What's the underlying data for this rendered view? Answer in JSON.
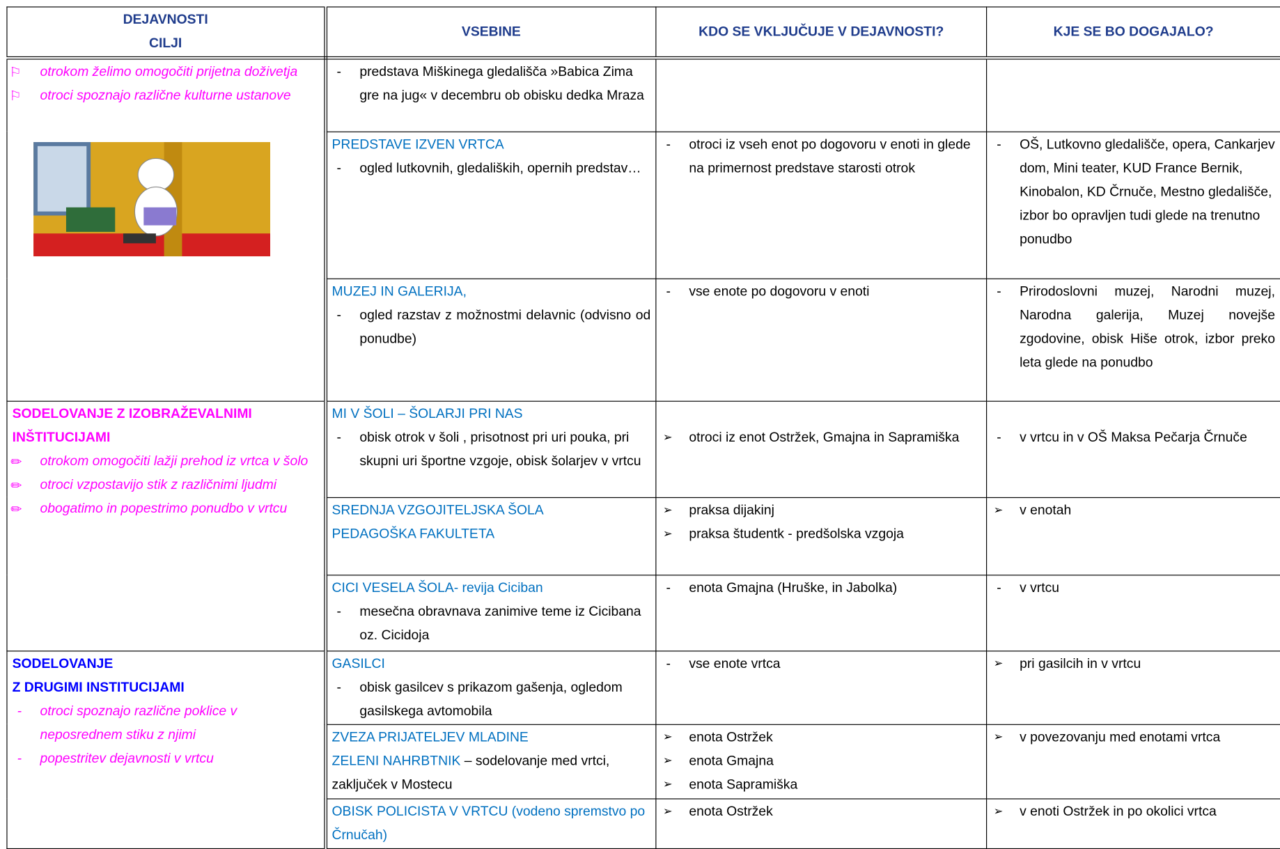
{
  "header": {
    "goals": [
      "DEJAVNOSTI",
      "CILJI"
    ],
    "contents": "VSEBINE",
    "who": "KDO SE VKLJUČUJE V DEJAVNOSTI?",
    "where": "KJE SE BO DOGAJALO?"
  },
  "groups": [
    {
      "goal": {
        "items": [
          "otrokom želimo omogočiti prijetna doživetja",
          "otroci spoznajo različne kulturne ustanove"
        ]
      },
      "rows": [
        {
          "content": {
            "items": [
              "predstava Miškinega gledališča »Babica Zima gre na jug« v decembru ob obisku dedka Mraza"
            ]
          }
        },
        {
          "content": {
            "heading": [
              "PREDSTAVE IZVEN VRTCA"
            ],
            "items": [
              "ogled lutkovnih, gledaliških, opernih predstav…"
            ]
          },
          "who": [
            "otroci iz vseh enot po dogovoru v enoti in glede na primernost predstave starosti otrok"
          ],
          "where": [
            "OŠ, Lutkovno gledališče, opera, Cankarjev dom, Mini teater, KUD France Bernik, Kinobalon, KD Črnuče, Mestno gledališče, izbor bo opravljen tudi glede na trenutno ponudbo"
          ]
        },
        {
          "content": {
            "heading": [
              "MUZEJ IN GALERIJA,"
            ],
            "items": [
              "ogled razstav z možnostmi delavnic (odvisno od ponudbe)"
            ]
          },
          "who": [
            "vse enote po dogovoru v enoti"
          ],
          "where": [
            "Prirodoslovni muzej, Narodni muzej, Narodna galerija, Muzej novejše zgodovine, obisk Hiše otrok, izbor preko leta glede na ponudbo"
          ]
        }
      ]
    },
    {
      "goal": {
        "title": [
          "SODELOVANJE Z IZOBRAŽEVALNIMI INŠTITUCIJAMI"
        ],
        "items": [
          "otrokom omogočiti lažji prehod iz vrtca v šolo",
          "otroci vzpostavijo stik z različnimi ljudmi",
          "obogatimo in popestrimo ponudbo v vrtcu"
        ]
      },
      "rows": [
        {
          "content": {
            "heading": [
              "MI V ŠOLI – ŠOLARJI PRI NAS"
            ],
            "items": [
              "obisk otrok v šoli , prisotnost pri uri pouka, pri skupni uri športne vzgoje, obisk šolarjev v vrtcu"
            ]
          },
          "who": [
            "otroci iz enot Ostržek, Gmajna in Sapramiška"
          ],
          "where": [
            "v vrtcu in v OŠ Maksa Pečarja Črnuče"
          ]
        },
        {
          "content": {
            "heading": [
              "SREDNJA VZGOJITELJSKA ŠOLA",
              "PEDAGOŠKA FAKULTETA"
            ]
          },
          "who": [
            "praksa dijakinj",
            "praksa študentk - predšolska vzgoja"
          ],
          "where": [
            "v enotah"
          ]
        },
        {
          "content": {
            "heading": [
              "CICI VESELA ŠOLA- revija Ciciban"
            ],
            "items": [
              "mesečna obravnava zanimive teme iz Cicibana oz. Cicidoja"
            ]
          },
          "who": [
            "enota Gmajna (Hruške, in Jabolka)"
          ],
          "where": [
            "v vrtcu"
          ]
        }
      ]
    },
    {
      "goal": {
        "title": [
          "SODELOVANJE",
          "Z DRUGIMI INSTITUCIJAMI"
        ],
        "items": [
          "otroci spoznajo različne poklice v neposrednem stiku z njimi",
          "popestritev dejavnosti v vrtcu"
        ]
      },
      "rows": [
        {
          "content": {
            "heading": [
              "GASILCI"
            ],
            "items": [
              "obisk gasilcev s prikazom gašenja, ogledom gasilskega avtomobila"
            ]
          },
          "who": [
            "vse enote vrtca"
          ],
          "where": [
            "pri gasilcih in v vrtcu"
          ]
        },
        {
          "content": {
            "heading": [
              "ZVEZA PRIJATELJEV MLADINE",
              "ZELENI NAHRBTNIK"
            ],
            "tail": "– sodelovanje med vrtci, zaključek v Mostecu"
          },
          "who": [
            "enota Ostržek",
            "enota Gmajna",
            "enota Sapramiška"
          ],
          "where": [
            "v povezovanju med enotami vrtca"
          ]
        },
        {
          "content": {
            "heading": [
              "OBISK POLICISTA V VRTCU (vodeno spremstvo po Črnučah)"
            ]
          },
          "who": [
            "enota Ostržek"
          ],
          "where": [
            "v enoti Ostržek in po okolici vrtca"
          ]
        }
      ]
    }
  ]
}
